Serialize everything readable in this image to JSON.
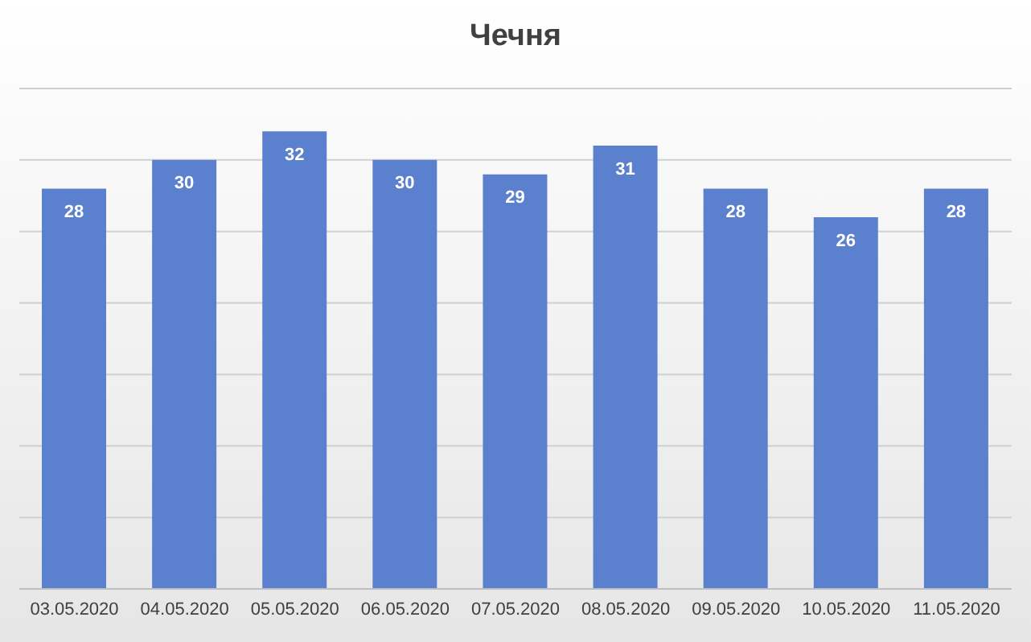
{
  "chart_data": {
    "type": "bar",
    "title": "Чечня",
    "categories": [
      "03.05.2020",
      "04.05.2020",
      "05.05.2020",
      "06.05.2020",
      "07.05.2020",
      "08.05.2020",
      "09.05.2020",
      "10.05.2020",
      "11.05.2020"
    ],
    "values": [
      28,
      30,
      32,
      30,
      29,
      31,
      28,
      26,
      28
    ],
    "color": "#5b80cd",
    "ylim": [
      0,
      35
    ],
    "yticks": [
      {
        "value": 0,
        "label": null
      },
      {
        "value": 5,
        "label": null
      },
      {
        "value": 10,
        "label": null
      },
      {
        "value": 15,
        "label": null
      },
      {
        "value": 20,
        "label": null
      },
      {
        "value": 25,
        "label": null
      },
      {
        "value": 30,
        "label": null
      },
      {
        "value": 35,
        "label": null
      }
    ],
    "tick_labels": "x",
    "grid": "y",
    "data_labels": true
  }
}
